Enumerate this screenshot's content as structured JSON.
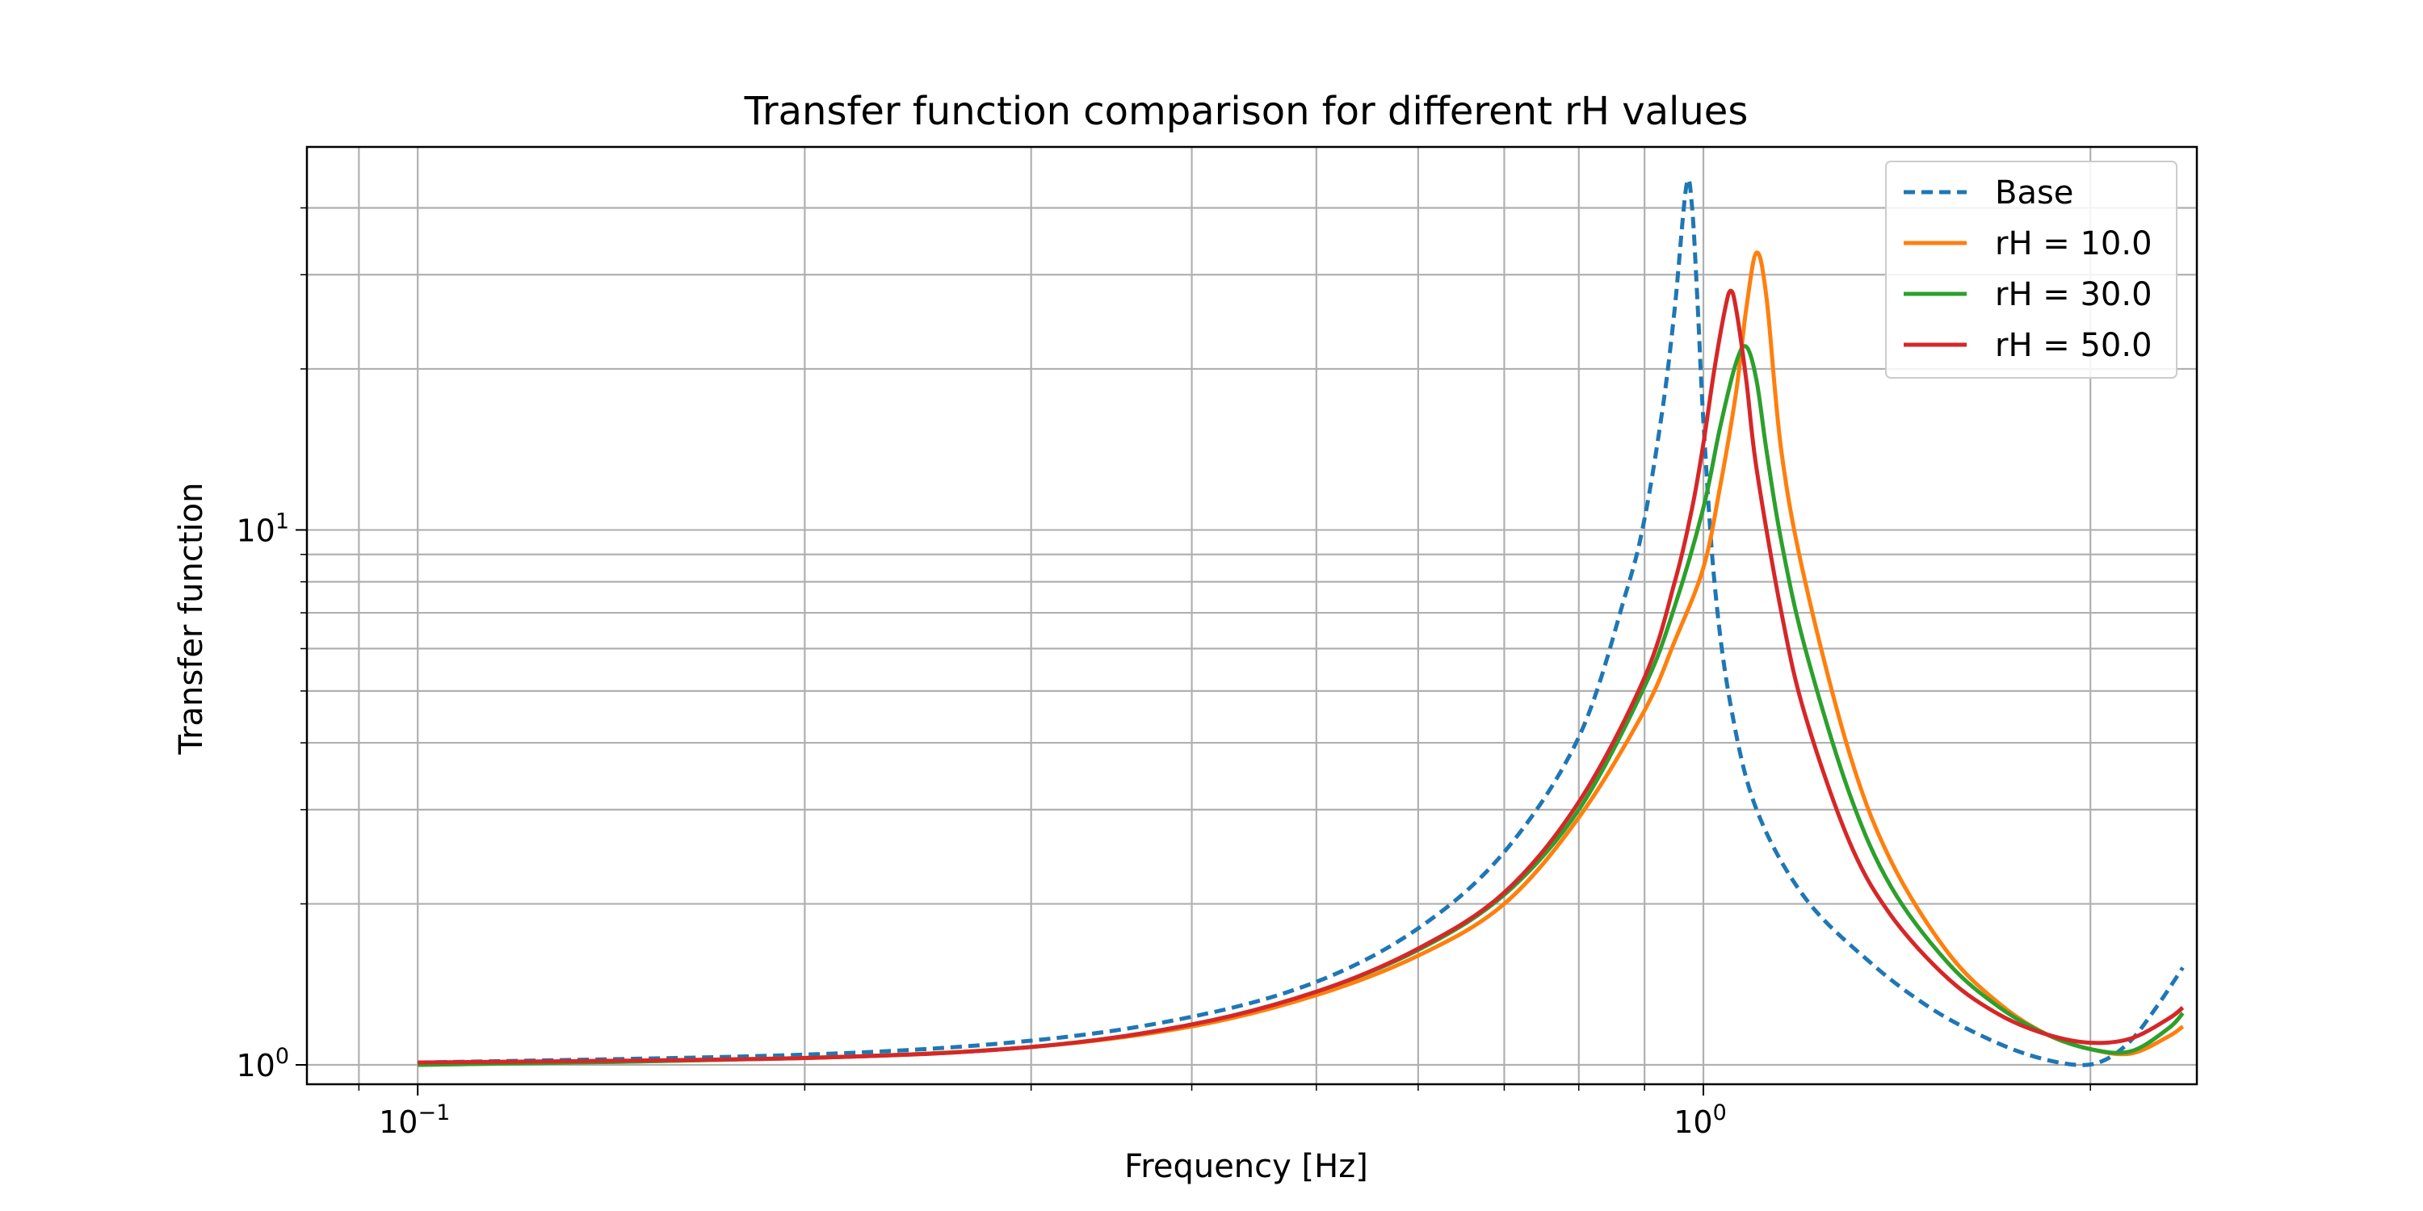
{
  "chart_data": {
    "type": "line",
    "title": "Transfer function comparison for different rH values",
    "xlabel": "Frequency [Hz]",
    "ylabel": "Transfer function",
    "xscale": "log",
    "yscale": "log",
    "xlim": [
      0.082,
      2.42
    ],
    "ylim": [
      0.92,
      52.0
    ],
    "x_tick_labels": [
      {
        "value": 0.1,
        "base": "10",
        "exp": "−1"
      },
      {
        "value": 1.0,
        "base": "10",
        "exp": "0"
      }
    ],
    "y_tick_labels": [
      {
        "value": 1.0,
        "base": "10",
        "exp": "0"
      },
      {
        "value": 10.0,
        "base": "10",
        "exp": "1"
      }
    ],
    "x_major_ticks": [
      0.1,
      1.0
    ],
    "x_minor_ticks": [
      0.09,
      0.2,
      0.3,
      0.4,
      0.5,
      0.6,
      0.7,
      0.8,
      0.9,
      2.0
    ],
    "y_major_ticks": [
      1,
      10
    ],
    "y_minor_ticks": [
      2,
      3,
      4,
      5,
      6,
      7,
      8,
      9,
      20,
      30,
      40
    ],
    "grid": true,
    "legend_position": "top-right",
    "series": [
      {
        "name": "Base",
        "color": "#1f77b4",
        "style": "dashed",
        "x": [
          0.1,
          0.2,
          0.3,
          0.4,
          0.5,
          0.6,
          0.7,
          0.8,
          0.87,
          0.9,
          0.93,
          0.95,
          0.97,
          0.98,
          0.99,
          1.0,
          1.02,
          1.05,
          1.1,
          1.2,
          1.35,
          1.5,
          1.65,
          1.8,
          1.95,
          2.05,
          2.15,
          2.25,
          2.36
        ],
        "y": [
          1.01,
          1.045,
          1.11,
          1.23,
          1.43,
          1.8,
          2.5,
          4.1,
          7.6,
          10.5,
          17.0,
          26.0,
          44.0,
          40.0,
          26.0,
          16.0,
          8.0,
          4.7,
          3.0,
          2.05,
          1.55,
          1.28,
          1.13,
          1.04,
          1.0,
          1.02,
          1.11,
          1.28,
          1.52
        ]
      },
      {
        "name": "rH = 10.0",
        "color": "#ff7f0e",
        "style": "solid",
        "x": [
          0.1,
          0.2,
          0.3,
          0.4,
          0.5,
          0.6,
          0.7,
          0.8,
          0.9,
          0.95,
          1.0,
          1.03,
          1.06,
          1.08,
          1.1,
          1.12,
          1.15,
          1.2,
          1.3,
          1.4,
          1.55,
          1.7,
          1.85,
          2.0,
          2.15,
          2.3,
          2.36
        ],
        "y": [
          1.0,
          1.03,
          1.08,
          1.18,
          1.35,
          1.6,
          2.0,
          2.9,
          4.6,
          6.2,
          8.5,
          12.0,
          18.0,
          26.0,
          33.0,
          27.0,
          14.0,
          8.0,
          3.8,
          2.4,
          1.62,
          1.3,
          1.14,
          1.07,
          1.05,
          1.13,
          1.18
        ]
      },
      {
        "name": "rH = 30.0",
        "color": "#2ca02c",
        "style": "solid",
        "x": [
          0.1,
          0.2,
          0.3,
          0.4,
          0.5,
          0.6,
          0.7,
          0.8,
          0.9,
          0.95,
          1.0,
          1.03,
          1.06,
          1.08,
          1.1,
          1.12,
          1.15,
          1.2,
          1.3,
          1.4,
          1.55,
          1.7,
          1.85,
          2.0,
          2.15,
          2.3,
          2.36
        ],
        "y": [
          1.0,
          1.03,
          1.08,
          1.19,
          1.37,
          1.64,
          2.08,
          3.0,
          5.1,
          7.2,
          11.0,
          15.5,
          20.5,
          22.0,
          19.0,
          14.0,
          9.5,
          6.0,
          3.2,
          2.15,
          1.55,
          1.28,
          1.14,
          1.07,
          1.06,
          1.17,
          1.25
        ]
      },
      {
        "name": "rH = 50.0",
        "color": "#d62728",
        "style": "solid",
        "x": [
          0.1,
          0.2,
          0.3,
          0.4,
          0.5,
          0.6,
          0.7,
          0.8,
          0.9,
          0.95,
          0.98,
          1.0,
          1.02,
          1.04,
          1.05,
          1.06,
          1.08,
          1.1,
          1.15,
          1.2,
          1.3,
          1.4,
          1.55,
          1.7,
          1.85,
          2.0,
          2.15,
          2.3,
          2.36
        ],
        "y": [
          1.01,
          1.03,
          1.08,
          1.19,
          1.37,
          1.65,
          2.1,
          3.1,
          5.3,
          8.0,
          11.0,
          14.5,
          20.0,
          26.0,
          28.0,
          26.0,
          19.0,
          13.0,
          7.0,
          4.5,
          2.6,
          1.9,
          1.45,
          1.24,
          1.14,
          1.1,
          1.12,
          1.22,
          1.28
        ]
      }
    ]
  }
}
